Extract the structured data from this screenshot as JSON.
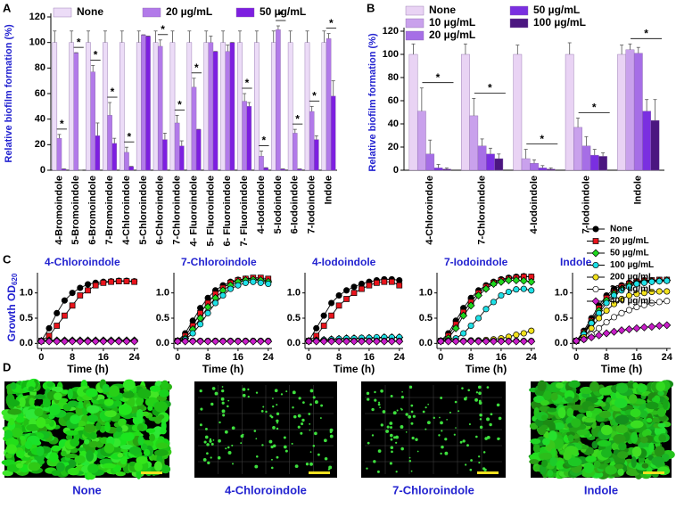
{
  "chart_data": [
    {
      "type": "bar",
      "panel_label": "A",
      "y_label": "Relative biofilm formation (%)",
      "categories": [
        "4-Bromoindole",
        "5-Bromoindole",
        "6-Bromoindole",
        "7-Bromoindole",
        "4-Chloroindole",
        "5-Chloroindole",
        "6-Chloroindole",
        "7-Chloroindole",
        "4- Fluoroindole",
        "5- Fluoroindole",
        "6- Fluoroindole",
        "7- Fluoroindole",
        "4-Iodoindole",
        "5-Iodoindole",
        "6-Iodoindole",
        "7-Iodoindole",
        "Indole"
      ],
      "series": [
        {
          "name": "None",
          "color": "#ecdcf7",
          "values": [
            100,
            100,
            100,
            100,
            100,
            100,
            100,
            100,
            100,
            100,
            100,
            100,
            100,
            100,
            100,
            100,
            100
          ],
          "errors": [
            9,
            9,
            9,
            9,
            9,
            9,
            9,
            9,
            9,
            9,
            9,
            9,
            9,
            9,
            9,
            9,
            9
          ]
        },
        {
          "name": "20 µg/mL",
          "color": "#b27ae9",
          "values": [
            25,
            92,
            77,
            43,
            14,
            106,
            97,
            37,
            65,
            100,
            93,
            54,
            11,
            110,
            29,
            46,
            103
          ],
          "errors": [
            3,
            0,
            5,
            10,
            4,
            0,
            5,
            6,
            7,
            5,
            5,
            6,
            4,
            3,
            3,
            4,
            4
          ]
        },
        {
          "name": "50 µg/mL",
          "color": "#7d1fe0",
          "values": [
            1,
            0,
            27,
            21,
            3,
            105,
            24,
            19,
            32,
            93,
            100,
            50,
            2,
            1,
            1,
            24,
            58
          ],
          "errors": [
            0,
            0,
            10,
            4,
            0,
            0,
            5,
            4,
            0,
            0,
            0,
            3,
            0,
            0,
            0,
            3,
            12
          ]
        }
      ],
      "significance": [
        "*",
        "*",
        "*",
        "*",
        "*",
        null,
        "*",
        "*",
        "*",
        null,
        null,
        "*",
        "*",
        "*",
        "*",
        "*",
        "*"
      ],
      "ylim": [
        0,
        120
      ],
      "yticks": [
        0,
        20,
        40,
        60,
        80,
        100,
        120
      ]
    },
    {
      "type": "bar",
      "panel_label": "B",
      "y_label": "Relative biofilm formation (%)",
      "categories": [
        "4-Chloroindole",
        "7-Chloroindole",
        "4-Iodoindole",
        "7-Iodoindole",
        "Indole"
      ],
      "series": [
        {
          "name": "None",
          "color": "#e9d3f4",
          "values": [
            100,
            100,
            100,
            100,
            100
          ],
          "errors": [
            9,
            9,
            8,
            10,
            8
          ]
        },
        {
          "name": "10 µg/mL",
          "color": "#c9a1ec",
          "values": [
            51,
            47,
            10,
            37,
            104
          ],
          "errors": [
            20,
            15,
            8,
            8,
            5
          ]
        },
        {
          "name": "20 µg/mL",
          "color": "#a66ee6",
          "values": [
            14,
            21,
            6,
            21,
            101
          ],
          "errors": [
            12,
            6,
            3,
            8,
            5
          ]
        },
        {
          "name": "50 µg/mL",
          "color": "#7a2fe0",
          "values": [
            2,
            14,
            2,
            13,
            51
          ],
          "errors": [
            3,
            5,
            2,
            5,
            10
          ]
        },
        {
          "name": "100 µg/mL",
          "color": "#4b1680",
          "values": [
            1,
            10,
            1,
            12,
            43
          ],
          "errors": [
            1,
            4,
            1,
            3,
            18
          ]
        }
      ],
      "significance": [
        "*",
        "*",
        "*",
        "*",
        "*"
      ],
      "ylim": [
        0,
        120
      ],
      "yticks": [
        0,
        20,
        40,
        60,
        80,
        100,
        120
      ]
    },
    {
      "type": "line",
      "panel_label": "C",
      "x_label": "Time (h)",
      "y_label": [
        "Growth OD",
        "620"
      ],
      "x": [
        0,
        2,
        4,
        6,
        8,
        10,
        12,
        14,
        16,
        18,
        20,
        22,
        24
      ],
      "xlim": [
        -1,
        25
      ],
      "xticks": [
        0,
        8,
        16,
        24
      ],
      "ylim": [
        -0.1,
        1.4
      ],
      "yticks": [
        {
          "value": 0,
          "label": "0.0"
        },
        0.5,
        {
          "value": 1,
          "label": "1.0"
        }
      ],
      "series": [
        {
          "name": "None",
          "color": "#000000",
          "marker": "circle"
        },
        {
          "name": "20 µg/mL",
          "color": "#e8141c",
          "marker": "square"
        },
        {
          "name": "50 µg/mL",
          "color": "#1ed81e",
          "marker": "diamond"
        },
        {
          "name": "100 µg/mL",
          "color": "#1ee0e6",
          "marker": "circle"
        },
        {
          "name": "200 µg/mL",
          "color": "#f2e21c",
          "marker": "circle"
        },
        {
          "name": "300 µg/mL",
          "color": "#ffffff",
          "marker": "circle"
        },
        {
          "name": "400 µg/mL",
          "color": "#c81ec8",
          "marker": "diamond"
        }
      ],
      "panels": [
        {
          "title": "4-Chloroindole",
          "values": [
            [
              0.05,
              0.3,
              0.6,
              0.85,
              1.0,
              1.1,
              1.17,
              1.2,
              1.22,
              1.23,
              1.24,
              1.24,
              1.23
            ],
            [
              0.05,
              0.15,
              0.35,
              0.55,
              0.75,
              0.95,
              1.05,
              1.15,
              1.2,
              1.22,
              1.23,
              1.23,
              1.22
            ],
            [
              0.05,
              0.06,
              0.06,
              0.06,
              0.06,
              0.06,
              0.06,
              0.06,
              0.06,
              0.06,
              0.06,
              0.06,
              0.06
            ],
            [
              0.05,
              0.05,
              0.05,
              0.05,
              0.05,
              0.05,
              0.05,
              0.05,
              0.05,
              0.05,
              0.05,
              0.05,
              0.05
            ],
            [
              0.05,
              0.05,
              0.05,
              0.05,
              0.05,
              0.05,
              0.05,
              0.05,
              0.05,
              0.05,
              0.05,
              0.05,
              0.05
            ],
            [
              0.05,
              0.05,
              0.05,
              0.05,
              0.05,
              0.05,
              0.05,
              0.05,
              0.05,
              0.05,
              0.05,
              0.05,
              0.05
            ],
            [
              0.04,
              0.04,
              0.04,
              0.04,
              0.04,
              0.04,
              0.04,
              0.04,
              0.04,
              0.04,
              0.04,
              0.04,
              0.04
            ]
          ]
        },
        {
          "title": "7-Chloroindole",
          "values": [
            [
              0.05,
              0.2,
              0.45,
              0.7,
              0.9,
              1.05,
              1.15,
              1.22,
              1.26,
              1.28,
              1.28,
              1.27,
              1.25
            ],
            [
              0.05,
              0.15,
              0.35,
              0.6,
              0.8,
              0.98,
              1.1,
              1.2,
              1.25,
              1.28,
              1.3,
              1.3,
              1.28
            ],
            [
              0.05,
              0.1,
              0.28,
              0.5,
              0.72,
              0.9,
              1.05,
              1.15,
              1.22,
              1.25,
              1.26,
              1.25,
              1.22
            ],
            [
              0.05,
              0.08,
              0.2,
              0.38,
              0.6,
              0.8,
              0.95,
              1.08,
              1.15,
              1.2,
              1.22,
              1.2,
              1.18
            ],
            [
              0.05,
              0.05,
              0.05,
              0.05,
              0.05,
              0.05,
              0.05,
              0.05,
              0.05,
              0.05,
              0.05,
              0.05,
              0.05
            ],
            [
              0.05,
              0.05,
              0.05,
              0.05,
              0.05,
              0.05,
              0.05,
              0.05,
              0.05,
              0.05,
              0.05,
              0.05,
              0.05
            ],
            [
              0.04,
              0.04,
              0.04,
              0.04,
              0.04,
              0.04,
              0.04,
              0.04,
              0.04,
              0.04,
              0.04,
              0.04,
              0.04
            ]
          ]
        },
        {
          "title": "4-Iodoindole",
          "values": [
            [
              0.05,
              0.3,
              0.55,
              0.8,
              0.95,
              1.05,
              1.12,
              1.18,
              1.22,
              1.25,
              1.27,
              1.27,
              1.25
            ],
            [
              0.05,
              0.15,
              0.35,
              0.55,
              0.75,
              0.88,
              1.0,
              1.08,
              1.15,
              1.2,
              1.22,
              1.22,
              1.15
            ],
            [
              0.05,
              0.06,
              0.07,
              0.08,
              0.09,
              0.1,
              0.1,
              0.1,
              0.11,
              0.11,
              0.12,
              0.12,
              0.12
            ],
            [
              0.05,
              0.06,
              0.07,
              0.08,
              0.09,
              0.1,
              0.1,
              0.11,
              0.11,
              0.12,
              0.12,
              0.12,
              0.12
            ],
            [
              0.05,
              0.05,
              0.05,
              0.05,
              0.05,
              0.05,
              0.05,
              0.05,
              0.05,
              0.05,
              0.05,
              0.05,
              0.05
            ],
            [
              0.05,
              0.05,
              0.05,
              0.05,
              0.05,
              0.05,
              0.05,
              0.05,
              0.05,
              0.05,
              0.05,
              0.05,
              0.05
            ],
            [
              0.04,
              0.04,
              0.04,
              0.04,
              0.04,
              0.04,
              0.04,
              0.04,
              0.04,
              0.04,
              0.04,
              0.04,
              0.04
            ]
          ]
        },
        {
          "title": "7-Iodoindole",
          "values": [
            [
              0.05,
              0.2,
              0.45,
              0.7,
              0.9,
              1.05,
              1.15,
              1.22,
              1.27,
              1.3,
              1.32,
              1.33,
              1.32
            ],
            [
              0.05,
              0.15,
              0.38,
              0.62,
              0.82,
              1.0,
              1.12,
              1.2,
              1.25,
              1.28,
              1.3,
              1.32,
              1.32
            ],
            [
              0.05,
              0.1,
              0.3,
              0.55,
              0.75,
              0.95,
              1.08,
              1.18,
              1.22,
              1.25,
              1.25,
              1.24,
              1.22
            ],
            [
              0.05,
              0.06,
              0.1,
              0.2,
              0.35,
              0.5,
              0.68,
              0.82,
              0.95,
              1.02,
              1.07,
              1.08,
              1.05
            ],
            [
              0.05,
              0.05,
              0.05,
              0.05,
              0.06,
              0.06,
              0.07,
              0.08,
              0.1,
              0.13,
              0.17,
              0.2,
              0.25
            ],
            [
              0.05,
              0.05,
              0.05,
              0.05,
              0.05,
              0.05,
              0.05,
              0.05,
              0.05,
              0.05,
              0.05,
              0.05,
              0.05
            ],
            [
              0.04,
              0.04,
              0.04,
              0.04,
              0.04,
              0.04,
              0.04,
              0.04,
              0.04,
              0.04,
              0.04,
              0.04,
              0.04
            ]
          ]
        },
        {
          "title": "Indole",
          "values": [
            [
              0.05,
              0.25,
              0.5,
              0.75,
              0.95,
              1.08,
              1.15,
              1.2,
              1.23,
              1.25,
              1.25,
              1.25,
              1.25
            ],
            [
              0.05,
              0.22,
              0.45,
              0.7,
              0.9,
              1.02,
              1.12,
              1.18,
              1.22,
              1.24,
              1.25,
              1.26,
              1.26
            ],
            [
              0.05,
              0.2,
              0.42,
              0.65,
              0.85,
              0.98,
              1.08,
              1.15,
              1.2,
              1.22,
              1.23,
              1.24,
              1.25
            ],
            [
              0.05,
              0.18,
              0.4,
              0.6,
              0.8,
              0.95,
              1.05,
              1.12,
              1.18,
              1.2,
              1.22,
              1.23,
              1.24
            ],
            [
              0.05,
              0.12,
              0.3,
              0.5,
              0.65,
              0.78,
              0.88,
              0.95,
              0.98,
              1.0,
              1.02,
              1.03,
              1.03
            ],
            [
              0.05,
              0.08,
              0.18,
              0.3,
              0.42,
              0.52,
              0.6,
              0.66,
              0.72,
              0.76,
              0.8,
              0.82,
              0.84
            ],
            [
              0.05,
              0.08,
              0.12,
              0.16,
              0.2,
              0.23,
              0.26,
              0.28,
              0.3,
              0.32,
              0.33,
              0.35,
              0.36
            ]
          ]
        }
      ]
    },
    {
      "type": "image",
      "panel_label": "D",
      "captions": [
        "None",
        "4-Chloroindole",
        "7-Chloroindole",
        "Indole"
      ]
    }
  ]
}
